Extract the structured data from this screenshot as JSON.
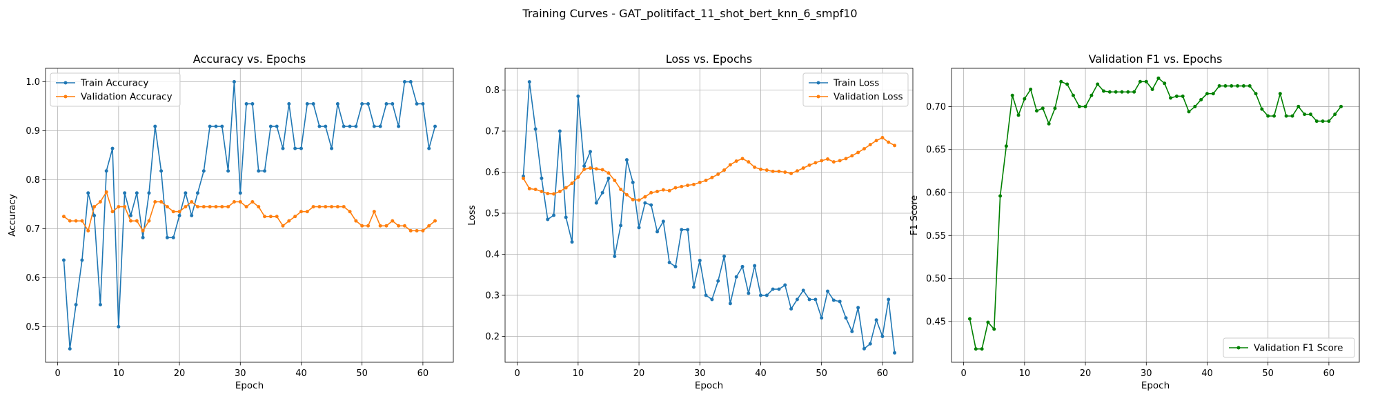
{
  "figure": {
    "title": "Training Curves - GAT_politifact_11_shot_bert_knn_6_smpf10"
  },
  "colors": {
    "blue": "#1f77b4",
    "orange": "#ff7f0e",
    "green": "#008000",
    "grid": "#b0b0b0"
  },
  "chart_data": [
    {
      "type": "line",
      "title": "Accuracy vs. Epochs",
      "xlabel": "Epoch",
      "ylabel": "Accuracy",
      "xlim": [
        -2,
        65
      ],
      "ylim": [
        0.4275,
        1.0275
      ],
      "xticks": [
        0,
        10,
        20,
        30,
        40,
        50,
        60
      ],
      "yticks": [
        0.5,
        0.6,
        0.7,
        0.8,
        0.9,
        1.0
      ],
      "ytick_labels": [
        "0.5",
        "0.6",
        "0.7",
        "0.8",
        "0.9",
        "1.0"
      ],
      "grid": true,
      "legend": "upper-left",
      "x": [
        1,
        2,
        3,
        4,
        5,
        6,
        7,
        8,
        9,
        10,
        11,
        12,
        13,
        14,
        15,
        16,
        17,
        18,
        19,
        20,
        21,
        22,
        23,
        24,
        25,
        26,
        27,
        28,
        29,
        30,
        31,
        32,
        33,
        34,
        35,
        36,
        37,
        38,
        39,
        40,
        41,
        42,
        43,
        44,
        45,
        46,
        47,
        48,
        49,
        50,
        51,
        52,
        53,
        54,
        55,
        56,
        57,
        58,
        59,
        60,
        61,
        62
      ],
      "series": [
        {
          "name": "Train Accuracy",
          "color": "#1f77b4",
          "values": [
            0.636,
            0.455,
            0.545,
            0.636,
            0.773,
            0.727,
            0.545,
            0.818,
            0.864,
            0.5,
            0.773,
            0.727,
            0.773,
            0.682,
            0.773,
            0.909,
            0.818,
            0.682,
            0.682,
            0.727,
            0.773,
            0.727,
            0.773,
            0.818,
            0.909,
            0.909,
            0.909,
            0.818,
            1.0,
            0.773,
            0.955,
            0.955,
            0.818,
            0.818,
            0.909,
            0.909,
            0.864,
            0.955,
            0.864,
            0.864,
            0.955,
            0.955,
            0.909,
            0.909,
            0.864,
            0.955,
            0.909,
            0.909,
            0.909,
            0.955,
            0.955,
            0.909,
            0.909,
            0.955,
            0.955,
            0.909,
            1.0,
            1.0,
            0.955,
            0.955,
            0.864,
            0.909
          ]
        },
        {
          "name": "Validation Accuracy",
          "color": "#ff7f0e",
          "values": [
            0.725,
            0.716,
            0.716,
            0.716,
            0.696,
            0.745,
            0.755,
            0.775,
            0.735,
            0.745,
            0.745,
            0.716,
            0.716,
            0.696,
            0.716,
            0.755,
            0.755,
            0.745,
            0.735,
            0.735,
            0.745,
            0.755,
            0.745,
            0.745,
            0.745,
            0.745,
            0.745,
            0.745,
            0.755,
            0.755,
            0.745,
            0.755,
            0.745,
            0.725,
            0.725,
            0.725,
            0.706,
            0.716,
            0.725,
            0.735,
            0.735,
            0.745,
            0.745,
            0.745,
            0.745,
            0.745,
            0.745,
            0.735,
            0.716,
            0.706,
            0.706,
            0.735,
            0.706,
            0.706,
            0.716,
            0.706,
            0.706,
            0.696,
            0.696,
            0.696,
            0.706,
            0.716
          ]
        }
      ]
    },
    {
      "type": "line",
      "title": "Loss vs. Epochs",
      "xlabel": "Epoch",
      "ylabel": "Loss",
      "xlim": [
        -2,
        65
      ],
      "ylim": [
        0.137,
        0.853
      ],
      "xticks": [
        0,
        10,
        20,
        30,
        40,
        50,
        60
      ],
      "yticks": [
        0.2,
        0.3,
        0.4,
        0.5,
        0.6,
        0.7,
        0.8
      ],
      "ytick_labels": [
        "0.2",
        "0.3",
        "0.4",
        "0.5",
        "0.6",
        "0.7",
        "0.8"
      ],
      "grid": true,
      "legend": "upper-right",
      "x": [
        1,
        2,
        3,
        4,
        5,
        6,
        7,
        8,
        9,
        10,
        11,
        12,
        13,
        14,
        15,
        16,
        17,
        18,
        19,
        20,
        21,
        22,
        23,
        24,
        25,
        26,
        27,
        28,
        29,
        30,
        31,
        32,
        33,
        34,
        35,
        36,
        37,
        38,
        39,
        40,
        41,
        42,
        43,
        44,
        45,
        46,
        47,
        48,
        49,
        50,
        51,
        52,
        53,
        54,
        55,
        56,
        57,
        58,
        59,
        60,
        61,
        62
      ],
      "series": [
        {
          "name": "Train Loss",
          "color": "#1f77b4",
          "values": [
            0.59,
            0.82,
            0.705,
            0.585,
            0.485,
            0.495,
            0.7,
            0.49,
            0.43,
            0.785,
            0.615,
            0.65,
            0.525,
            0.55,
            0.585,
            0.395,
            0.47,
            0.63,
            0.575,
            0.465,
            0.525,
            0.52,
            0.455,
            0.48,
            0.38,
            0.37,
            0.46,
            0.46,
            0.32,
            0.385,
            0.3,
            0.29,
            0.335,
            0.395,
            0.28,
            0.345,
            0.37,
            0.305,
            0.372,
            0.3,
            0.3,
            0.315,
            0.315,
            0.325,
            0.267,
            0.29,
            0.312,
            0.29,
            0.29,
            0.245,
            0.31,
            0.288,
            0.285,
            0.245,
            0.212,
            0.27,
            0.17,
            0.182,
            0.24,
            0.2,
            0.29,
            0.16
          ]
        },
        {
          "name": "Validation Loss",
          "color": "#ff7f0e",
          "values": [
            0.585,
            0.56,
            0.558,
            0.553,
            0.548,
            0.547,
            0.553,
            0.562,
            0.573,
            0.588,
            0.607,
            0.61,
            0.608,
            0.606,
            0.598,
            0.58,
            0.558,
            0.545,
            0.533,
            0.532,
            0.54,
            0.55,
            0.553,
            0.557,
            0.555,
            0.562,
            0.565,
            0.568,
            0.57,
            0.575,
            0.58,
            0.587,
            0.595,
            0.605,
            0.618,
            0.627,
            0.633,
            0.625,
            0.612,
            0.607,
            0.605,
            0.602,
            0.602,
            0.6,
            0.597,
            0.603,
            0.61,
            0.617,
            0.623,
            0.628,
            0.632,
            0.625,
            0.628,
            0.633,
            0.64,
            0.648,
            0.657,
            0.667,
            0.677,
            0.684,
            0.673,
            0.665
          ]
        }
      ]
    },
    {
      "type": "line",
      "title": "Validation F1 vs. Epochs",
      "xlabel": "Epoch",
      "ylabel": "F1 Score",
      "xlim": [
        -2,
        65
      ],
      "ylim": [
        0.4025,
        0.7445
      ],
      "xticks": [
        0,
        10,
        20,
        30,
        40,
        50,
        60
      ],
      "yticks": [
        0.45,
        0.5,
        0.55,
        0.6,
        0.65,
        0.7
      ],
      "ytick_labels": [
        "0.45",
        "0.50",
        "0.55",
        "0.60",
        "0.65",
        "0.70"
      ],
      "grid": true,
      "legend": "lower-right",
      "x": [
        1,
        2,
        3,
        4,
        5,
        6,
        7,
        8,
        9,
        10,
        11,
        12,
        13,
        14,
        15,
        16,
        17,
        18,
        19,
        20,
        21,
        22,
        23,
        24,
        25,
        26,
        27,
        28,
        29,
        30,
        31,
        32,
        33,
        34,
        35,
        36,
        37,
        38,
        39,
        40,
        41,
        42,
        43,
        44,
        45,
        46,
        47,
        48,
        49,
        50,
        51,
        52,
        53,
        54,
        55,
        56,
        57,
        58,
        59,
        60,
        61,
        62
      ],
      "series": [
        {
          "name": "Validation F1 Score",
          "color": "#008000",
          "values": [
            0.453,
            0.418,
            0.418,
            0.449,
            0.441,
            0.596,
            0.654,
            0.713,
            0.69,
            0.709,
            0.72,
            0.695,
            0.698,
            0.68,
            0.698,
            0.729,
            0.726,
            0.713,
            0.7,
            0.7,
            0.713,
            0.726,
            0.718,
            0.717,
            0.717,
            0.717,
            0.717,
            0.717,
            0.729,
            0.729,
            0.72,
            0.733,
            0.727,
            0.71,
            0.712,
            0.712,
            0.694,
            0.7,
            0.708,
            0.715,
            0.715,
            0.724,
            0.724,
            0.724,
            0.724,
            0.724,
            0.724,
            0.715,
            0.697,
            0.689,
            0.689,
            0.715,
            0.689,
            0.689,
            0.7,
            0.691,
            0.691,
            0.683,
            0.683,
            0.683,
            0.691,
            0.7
          ]
        }
      ]
    }
  ]
}
